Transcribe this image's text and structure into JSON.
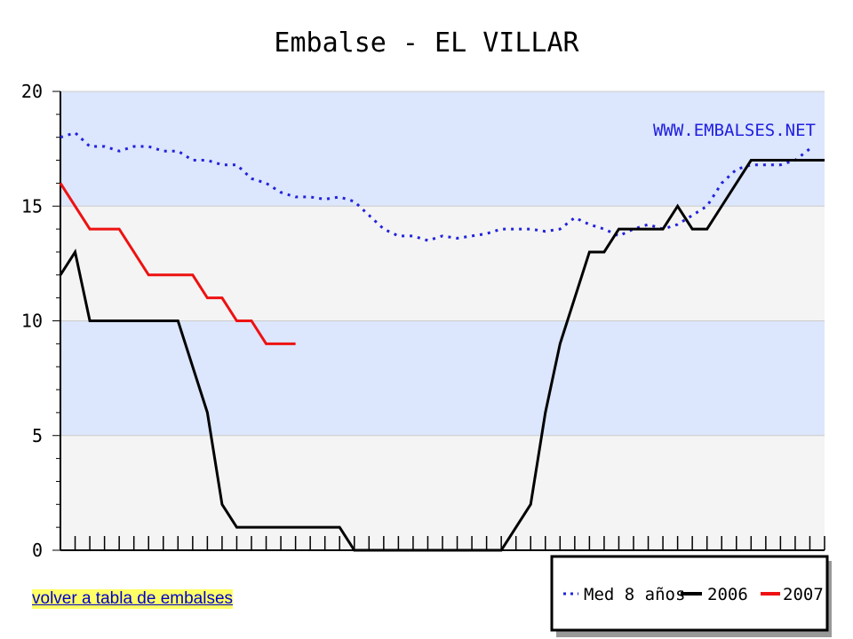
{
  "chart_data": {
    "type": "line",
    "title": "Embalse - EL VILLAR",
    "watermark": "WWW.EMBALSES.NET",
    "ylim": [
      0,
      20
    ],
    "xlim": [
      0,
      52
    ],
    "y_ticks": [
      0,
      5,
      10,
      15,
      20
    ],
    "legend_position": "bottom-right",
    "bands": {
      "colors": [
        "#f4f4f4",
        "#dce6fc"
      ]
    },
    "series": [
      {
        "name": "Med 8 años",
        "color": "#2222dd",
        "style": "dotted",
        "points": [
          [
            0,
            18
          ],
          [
            1,
            18.2
          ],
          [
            2,
            17.6
          ],
          [
            3,
            17.6
          ],
          [
            4,
            17.4
          ],
          [
            5,
            17.6
          ],
          [
            6,
            17.6
          ],
          [
            7,
            17.4
          ],
          [
            8,
            17.4
          ],
          [
            9,
            17.0
          ],
          [
            10,
            17.0
          ],
          [
            11,
            16.8
          ],
          [
            12,
            16.8
          ],
          [
            13,
            16.2
          ],
          [
            14,
            16.0
          ],
          [
            15,
            15.6
          ],
          [
            16,
            15.4
          ],
          [
            17,
            15.4
          ],
          [
            18,
            15.3
          ],
          [
            19,
            15.4
          ],
          [
            20,
            15.2
          ],
          [
            21,
            14.6
          ],
          [
            22,
            14.0
          ],
          [
            23,
            13.7
          ],
          [
            24,
            13.7
          ],
          [
            25,
            13.5
          ],
          [
            26,
            13.7
          ],
          [
            27,
            13.6
          ],
          [
            28,
            13.7
          ],
          [
            29,
            13.8
          ],
          [
            30,
            14.0
          ],
          [
            31,
            14.0
          ],
          [
            32,
            14.0
          ],
          [
            33,
            13.9
          ],
          [
            34,
            14.0
          ],
          [
            35,
            14.5
          ],
          [
            36,
            14.2
          ],
          [
            37,
            14.0
          ],
          [
            38,
            13.7
          ],
          [
            39,
            14.0
          ],
          [
            40,
            14.2
          ],
          [
            41,
            14.0
          ],
          [
            42,
            14.2
          ],
          [
            43,
            14.6
          ],
          [
            44,
            15.0
          ],
          [
            45,
            16.0
          ],
          [
            46,
            16.6
          ],
          [
            47,
            16.8
          ],
          [
            48,
            16.8
          ],
          [
            49,
            16.8
          ],
          [
            50,
            17.0
          ],
          [
            51,
            17.5
          ]
        ]
      },
      {
        "name": "2006",
        "color": "#000000",
        "style": "solid",
        "points": [
          [
            0,
            12
          ],
          [
            1,
            13
          ],
          [
            2,
            10
          ],
          [
            3,
            10
          ],
          [
            8,
            10
          ],
          [
            10,
            6
          ],
          [
            11,
            2
          ],
          [
            12,
            1
          ],
          [
            19,
            1
          ],
          [
            20,
            0
          ],
          [
            30,
            0
          ],
          [
            32,
            2
          ],
          [
            33,
            6
          ],
          [
            34,
            9
          ],
          [
            36,
            13
          ],
          [
            37,
            13
          ],
          [
            38,
            14
          ],
          [
            41,
            14
          ],
          [
            42,
            15
          ],
          [
            43,
            14
          ],
          [
            44,
            14
          ],
          [
            45,
            15
          ],
          [
            47,
            17
          ],
          [
            52,
            17
          ]
        ]
      },
      {
        "name": "2007",
        "color": "#ee1111",
        "style": "solid",
        "points": [
          [
            0,
            16
          ],
          [
            2,
            14
          ],
          [
            4,
            14
          ],
          [
            6,
            12
          ],
          [
            9,
            12
          ],
          [
            10,
            11
          ],
          [
            11,
            11
          ],
          [
            12,
            10
          ],
          [
            13,
            10
          ],
          [
            14,
            9
          ],
          [
            16,
            9
          ]
        ]
      }
    ]
  },
  "footer": {
    "back_link": "volver a tabla de embalses"
  }
}
